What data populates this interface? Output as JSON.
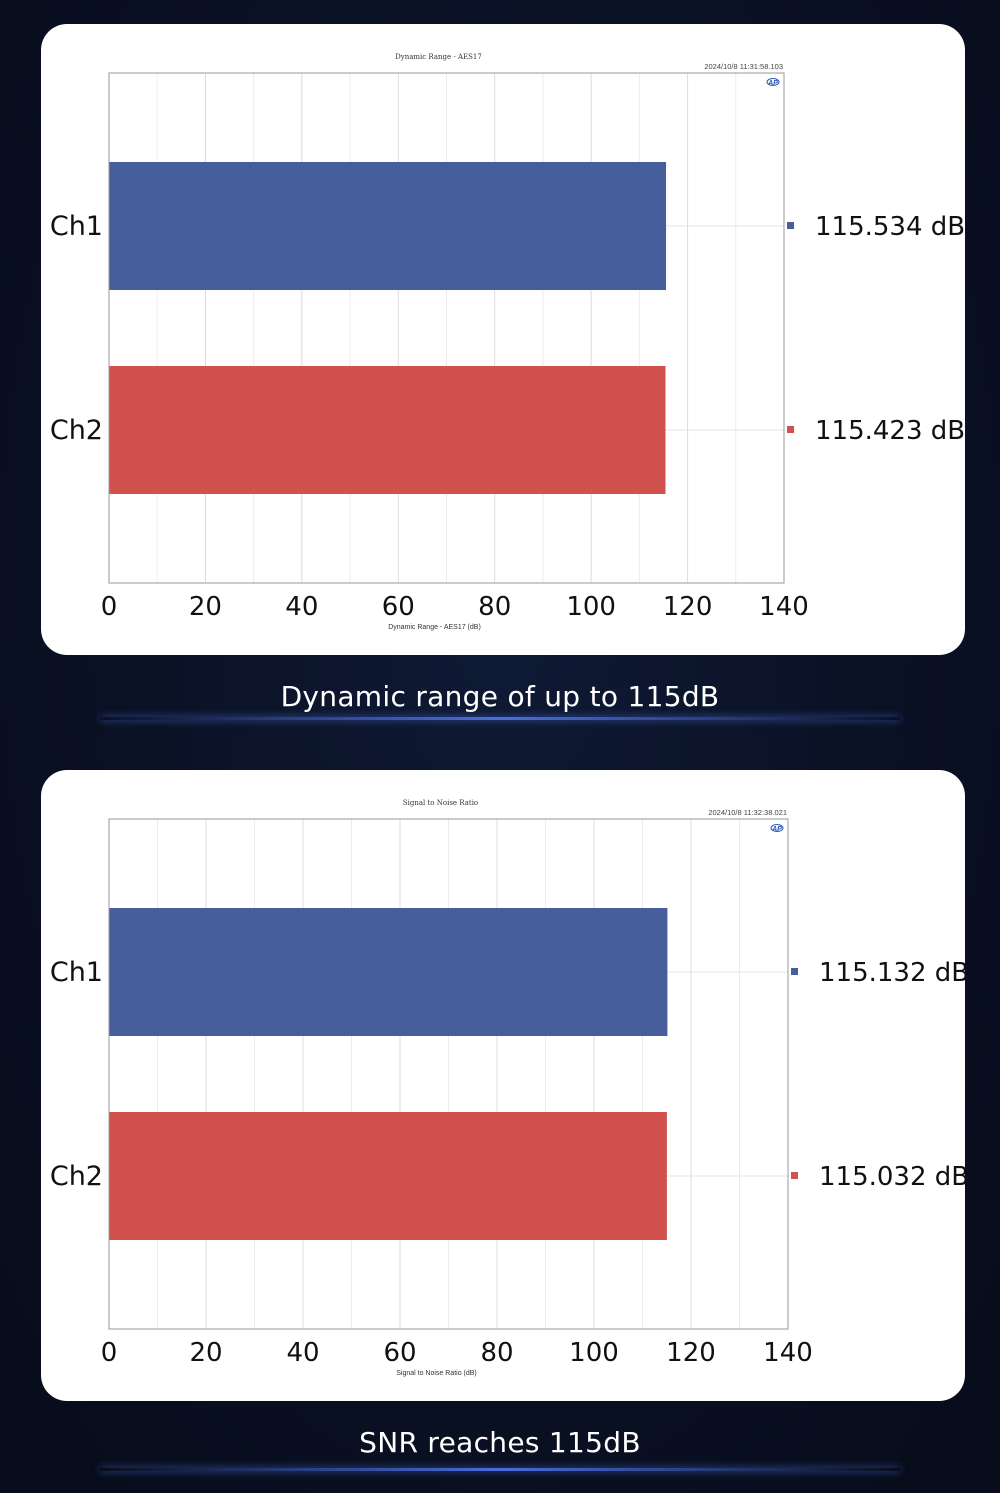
{
  "charts": [
    {
      "chart_data": {
        "type": "bar",
        "orientation": "horizontal",
        "title": "Dynamic Range - AES17",
        "timestamp": "2024/10/8 11:31:58.103",
        "xlabel": "Dynamic Range - AES17 (dB)",
        "categories": [
          "Ch1",
          "Ch2"
        ],
        "values": [
          115.534,
          115.423
        ],
        "value_labels": [
          "115.534 dB",
          "115.423 dB"
        ],
        "colors": [
          "#465f9c",
          "#d0514e"
        ],
        "xlim": [
          0,
          140
        ],
        "xticks": [
          0,
          20,
          40,
          60,
          80,
          100,
          120,
          140
        ],
        "grid": true
      },
      "caption": "Dynamic range of up to 115dB"
    },
    {
      "chart_data": {
        "type": "bar",
        "orientation": "horizontal",
        "title": "Signal to Noise Ratio",
        "timestamp": "2024/10/8 11:32:38.021",
        "xlabel": "Signal to Noise Ratio (dB)",
        "categories": [
          "Ch1",
          "Ch2"
        ],
        "values": [
          115.132,
          115.032
        ],
        "value_labels": [
          "115.132 dB",
          "115.032 dB"
        ],
        "colors": [
          "#465f9c",
          "#d0514e"
        ],
        "xlim": [
          0,
          140
        ],
        "xticks": [
          0,
          20,
          40,
          60,
          80,
          100,
          120,
          140
        ],
        "grid": true
      },
      "caption": "SNR reaches 115dB"
    }
  ],
  "logo_icon": "ap-logo-icon"
}
